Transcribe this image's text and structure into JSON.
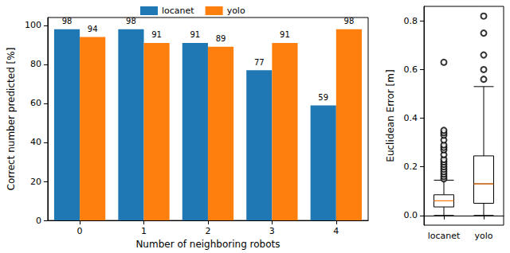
{
  "chart_data": [
    {
      "type": "bar",
      "x_label": "Number of neighboring robots",
      "y_label": "Correct number predicted [%]",
      "categories": [
        "0",
        "1",
        "2",
        "3",
        "4"
      ],
      "series": [
        {
          "name": "locanet",
          "color": "#1f77b4",
          "values": [
            98,
            98,
            91,
            77,
            59
          ]
        },
        {
          "name": "yolo",
          "color": "#ff7f0e",
          "values": [
            94,
            91,
            89,
            91,
            98
          ]
        }
      ],
      "ylim": [
        0,
        104
      ],
      "yticks": [
        0,
        20,
        40,
        60,
        80,
        100
      ],
      "data_labels": true,
      "legend": "upper center",
      "grid": false
    },
    {
      "type": "box",
      "y_label": "Euclidean Error [m]",
      "categories": [
        "locanet",
        "yolo"
      ],
      "min": [
        0.0,
        0.0
      ],
      "q1": [
        0.035,
        0.05
      ],
      "median": [
        0.06,
        0.13
      ],
      "q3": [
        0.085,
        0.245
      ],
      "max": [
        0.145,
        0.53
      ],
      "outliers": [
        [
          0.15,
          0.16,
          0.17,
          0.18,
          0.19,
          0.2,
          0.21,
          0.22,
          0.23,
          0.25,
          0.27,
          0.28,
          0.29,
          0.31,
          0.33,
          0.34,
          0.35,
          0.63
        ],
        [
          0.56,
          0.6,
          0.66,
          0.75,
          0.82
        ]
      ],
      "ylim": [
        -0.04,
        0.86
      ],
      "yticks": [
        {
          "value": 0,
          "label": "0.0"
        },
        {
          "value": 0.2,
          "label": "0.2"
        },
        {
          "value": 0.4,
          "label": "0.4"
        },
        {
          "value": 0.6,
          "label": "0.6"
        },
        {
          "value": 0.8,
          "label": "0.8"
        }
      ],
      "grid": false
    }
  ]
}
